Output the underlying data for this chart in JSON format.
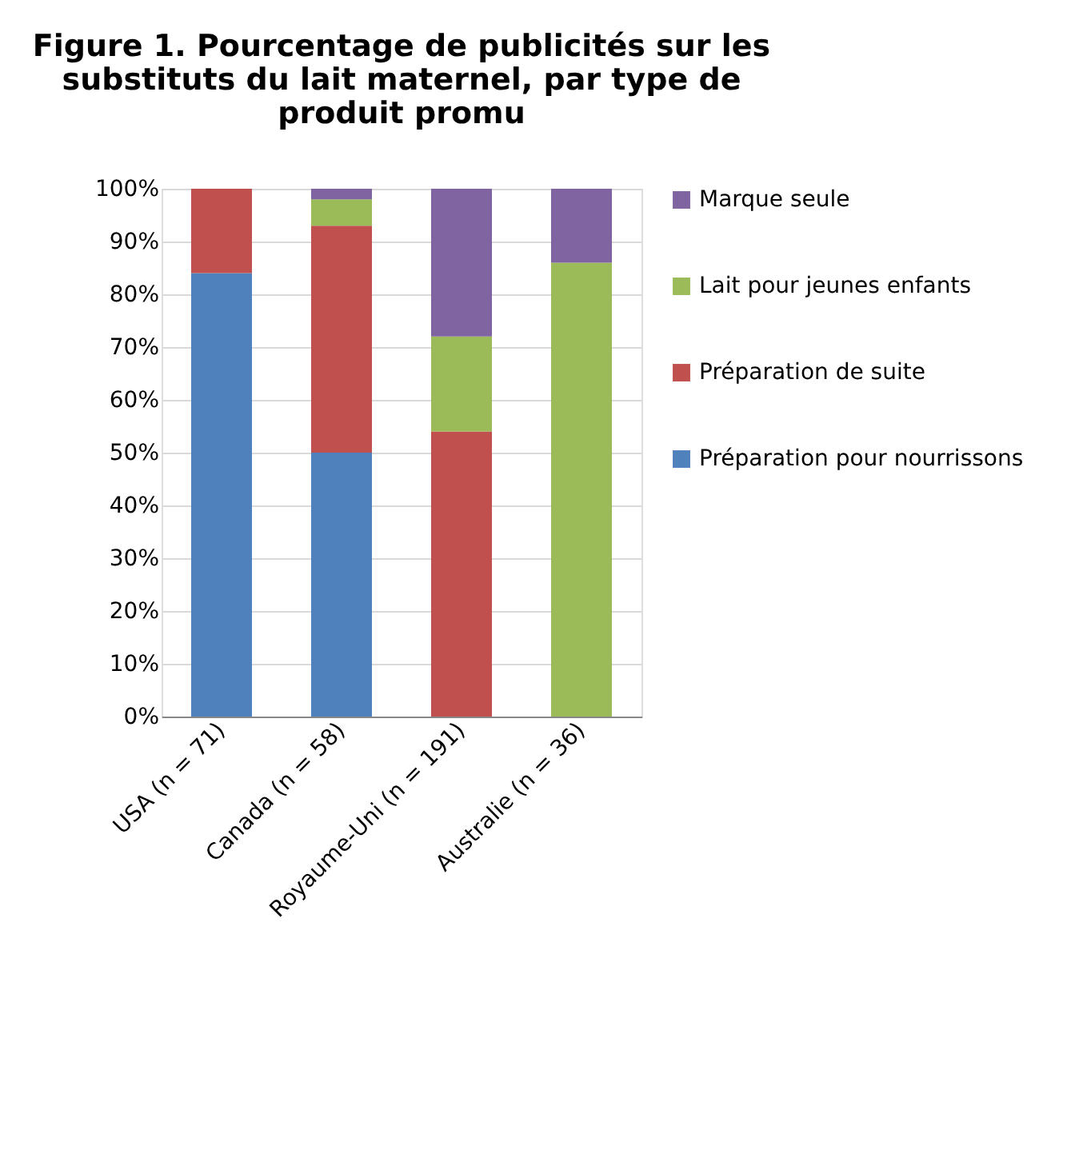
{
  "chart_data": {
    "type": "bar",
    "stacked": true,
    "title": "Figure 1. Pourcentage de publicités sur les substituts du lait maternel, par type de produit promu",
    "categories": [
      "USA (n = 71)",
      "Canada (n = 58)",
      "Royaume-Uni (n = 191)",
      "Australie (n = 36)"
    ],
    "series": [
      {
        "name": "Préparation pour nourrissons",
        "color": "#4f81bd",
        "values": [
          84,
          50,
          null,
          null
        ]
      },
      {
        "name": "Préparation de suite",
        "color": "#c0504d",
        "values": [
          16,
          43,
          54,
          null
        ]
      },
      {
        "name": "Lait pour jeunes enfants",
        "color": "#9bbb59",
        "values": [
          null,
          5,
          18,
          86
        ]
      },
      {
        "name": "Marque seule",
        "color": "#8064a2",
        "values": [
          null,
          2,
          28,
          14
        ]
      }
    ],
    "ylim": [
      0,
      100
    ],
    "yticks": [
      {
        "value": 0,
        "label": "0%"
      },
      {
        "value": 10,
        "label": "10%"
      },
      {
        "value": 20,
        "label": "20%"
      },
      {
        "value": 30,
        "label": "30%"
      },
      {
        "value": 40,
        "label": "40%"
      },
      {
        "value": 50,
        "label": "50%"
      },
      {
        "value": 60,
        "label": "60%"
      },
      {
        "value": 70,
        "label": "70%"
      },
      {
        "value": 80,
        "label": "80%"
      },
      {
        "value": 90,
        "label": "90%"
      },
      {
        "value": 100,
        "label": "100%"
      }
    ],
    "grid": "y",
    "legend": "right"
  }
}
